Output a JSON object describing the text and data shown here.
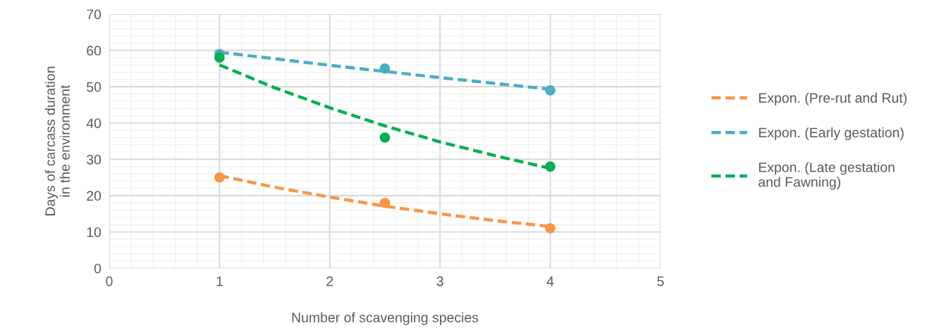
{
  "chart_data": {
    "type": "scatter",
    "xlabel": "Number of scavenging species",
    "ylabel": "Days of carcass duration\nin the environment",
    "xlim": [
      0,
      5
    ],
    "xticks": [
      0,
      1,
      2,
      3,
      4,
      5
    ],
    "ylim": [
      0,
      70
    ],
    "yticks": [
      0,
      10,
      20,
      30,
      40,
      50,
      60,
      70
    ],
    "grid": true,
    "legend": "right",
    "series": [
      {
        "marker": "circle",
        "color": "#f79646",
        "x": [
          1,
          2.5,
          4
        ],
        "values": [
          25,
          18,
          11
        ]
      },
      {
        "marker": "circle",
        "color": "#4bacc6",
        "x": [
          1,
          2.5,
          4
        ],
        "values": [
          59,
          55,
          49
        ]
      },
      {
        "marker": "circle",
        "color": "#00b050",
        "x": [
          1,
          2.5,
          4
        ],
        "values": [
          58,
          36,
          28
        ]
      },
      {
        "type": "line",
        "name": "Expon. (Pre-rut and Rut)",
        "color": "#f79646",
        "marker": "none",
        "line_style": "dashed",
        "x": [
          1,
          1.5,
          2,
          2.5,
          3,
          3.5,
          4
        ],
        "values": [
          25.5,
          22.3,
          19.6,
          17.1,
          15.0,
          13.1,
          11.5
        ]
      },
      {
        "type": "line",
        "name": "Expon. (Early gestation)",
        "color": "#4bacc6",
        "marker": "none",
        "line_style": "dashed",
        "x": [
          1,
          1.5,
          2,
          2.5,
          3,
          3.5,
          4
        ],
        "values": [
          59.5,
          57.7,
          55.9,
          54.2,
          52.5,
          50.9,
          49.3
        ]
      },
      {
        "type": "line",
        "name": "Expon. (Late gestation\nand Fawning)",
        "color": "#00b050",
        "marker": "none",
        "line_style": "dashed",
        "x": [
          1,
          1.5,
          2,
          2.5,
          3,
          3.5,
          4
        ],
        "values": [
          56,
          49.7,
          44.2,
          39.2,
          34.8,
          31.0,
          27.5
        ]
      }
    ]
  }
}
